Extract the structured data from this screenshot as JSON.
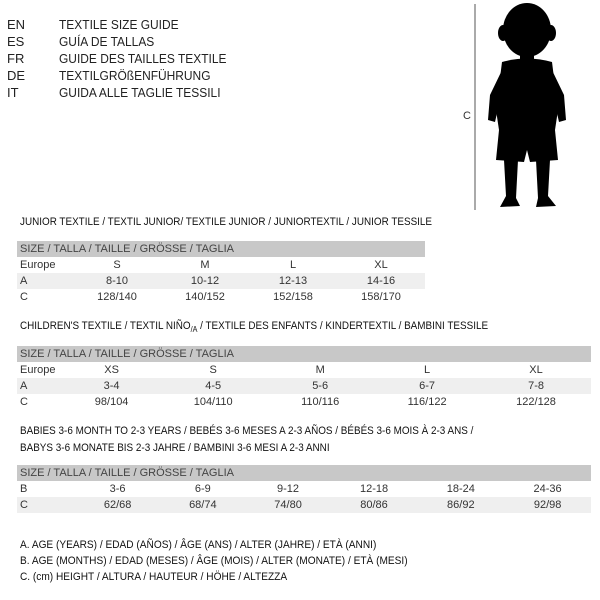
{
  "languages": [
    {
      "code": "EN",
      "text": "TEXTILE SIZE GUIDE"
    },
    {
      "code": "ES",
      "text": "GUÍA DE TALLAS"
    },
    {
      "code": "FR",
      "text": "GUIDE DES TAILLES TEXTILE"
    },
    {
      "code": "DE",
      "text": "TEXTILGRÖßENFÜHRUNG"
    },
    {
      "code": "IT",
      "text": "GUIDA ALLE TAGLIE TESSILI"
    }
  ],
  "figure": {
    "label": "C"
  },
  "size_header": "SIZE / TALLA / TAILLE / GRÖSSE / TAGLIA",
  "junior": {
    "title": "JUNIOR TEXTILE / TEXTIL JUNIOR/ TEXTILE JUNIOR / JUNIORTEXTIL / JUNIOR TESSILE",
    "rows": [
      [
        "Europe",
        "S",
        "M",
        "L",
        "XL"
      ],
      [
        "A",
        "8-10",
        "10-12",
        "12-13",
        "14-16"
      ],
      [
        "C",
        "128/140",
        "140/152",
        "152/158",
        "158/170"
      ]
    ]
  },
  "children": {
    "title_pre": "CHILDREN'S TEXTILE / TEXTIL NIÑO",
    "title_sub": "/A",
    "title_post": " / TEXTILE DES ENFANTS / KINDERTEXTIL / BAMBINI TESSILE",
    "rows": [
      [
        "Europe",
        "XS",
        "S",
        "M",
        "L",
        "XL"
      ],
      [
        "A",
        "3-4",
        "4-5",
        "5-6",
        "6-7",
        "7-8"
      ],
      [
        "C",
        "98/104",
        "104/110",
        "110/116",
        "116/122",
        "122/128"
      ]
    ]
  },
  "babies": {
    "title1": "BABIES 3-6 MONTH TO 2-3 YEARS / BEBÉS 3-6 MESES A 2-3 AÑOS / BÉBÉS 3-6 MOIS À 2-3 ANS /",
    "title2": "BABYS 3-6 MONATE BIS 2-3 JAHRE / BAMBINI 3-6 MESI A 2-3 ANNI",
    "rows": [
      [
        "B",
        "3-6",
        "6-9",
        "9-12",
        "12-18",
        "18-24",
        "24-36"
      ],
      [
        "C",
        "62/68",
        "68/74",
        "74/80",
        "80/86",
        "86/92",
        "92/98"
      ]
    ]
  },
  "footnotes": [
    "A. AGE (YEARS) / EDAD (AÑOS) / ÂGE (ANS) / ALTER (JAHRE) / ETÀ (ANNI)",
    "B. AGE (MONTHS) / EDAD (MESES) / ÂGE (MOIS) / ALTER (MONATE) / ETÀ (MESI)",
    "C. (cm) HEIGHT / ALTURA / HAUTEUR / HÖHE / ALTEZZA"
  ]
}
